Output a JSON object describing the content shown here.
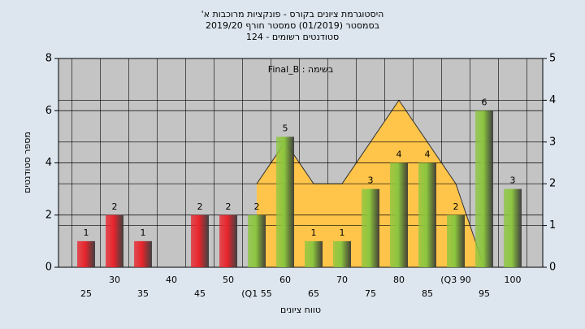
{
  "chart_data": {
    "type": "bar",
    "title": [
      "היסטוגרמת ציונים בקורס - פונקציות מרוכבות א'",
      "בסמסטר (01/2019) סמסטר חורף 2019/20",
      "סטודנטים רשומים - 124"
    ],
    "annotation": "בשימה : Final_B",
    "xlabel": "טווח ציונים",
    "ylabel": "מספר סטודנטים",
    "categories": [
      "25",
      "30",
      "35",
      "40",
      "45",
      "50",
      "(Q1 55",
      "60",
      "65",
      "70",
      "75",
      "80",
      "85",
      "(Q3 90",
      "95",
      "100"
    ],
    "series": [
      {
        "type": "bar",
        "values": [
          1,
          2,
          1,
          0,
          2,
          2,
          2,
          5,
          1,
          1,
          3,
          4,
          4,
          2,
          6,
          3
        ],
        "colors": [
          "#e8242c",
          "#e8242c",
          "#e8242c",
          "#e8242c",
          "#e8242c",
          "#e8242c",
          "#8cc63f",
          "#8cc63f",
          "#8cc63f",
          "#8cc63f",
          "#8cc63f",
          "#8cc63f",
          "#8cc63f",
          "#8cc63f",
          "#8cc63f",
          "#8cc63f"
        ]
      },
      {
        "type": "area",
        "axis": "y2",
        "color": "#ffc54a",
        "values": [
          null,
          null,
          null,
          null,
          null,
          null,
          2,
          3,
          2,
          2,
          3,
          4,
          3,
          2,
          0,
          null
        ]
      }
    ],
    "ylim": [
      0,
      8
    ],
    "yticks": [
      0,
      2,
      4,
      6,
      8
    ],
    "y2lim": [
      0,
      5
    ],
    "y2ticks": [
      0,
      1,
      2,
      3,
      4,
      5
    ],
    "grid": true
  }
}
